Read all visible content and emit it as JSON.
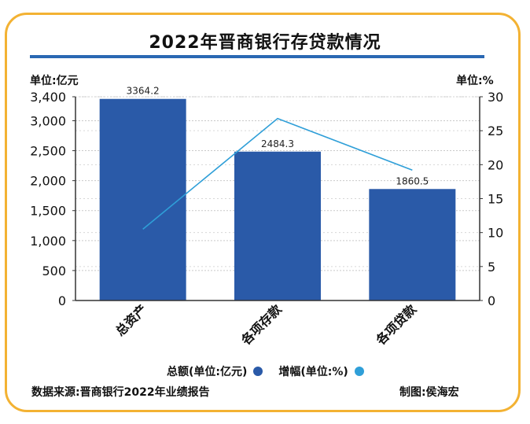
{
  "header": {
    "title": "2022年晋商银行存贷款情况",
    "left_unit": "单位:亿元",
    "right_unit": "单位:%"
  },
  "legend": {
    "total_label": "总额(单位:亿元)",
    "growth_label": "增幅(单位:%)"
  },
  "footer": {
    "source": "数据来源:晋商银行2022年业绩报告",
    "credit": "制图:侯海宏"
  },
  "colors": {
    "bar": "#2a5aa8",
    "line": "#2f9fd8",
    "border": "#f3b233",
    "rule": "#2a68b3"
  },
  "chart_data": {
    "type": "bar",
    "title": "2022年晋商银行存贷款情况",
    "categories": [
      "总资产",
      "各项存款",
      "各项贷款"
    ],
    "series": [
      {
        "name": "总额(单位:亿元)",
        "type": "bar",
        "axis": "left",
        "values": [
          3364.2,
          2484.3,
          1860.5
        ]
      },
      {
        "name": "增幅(单位:%)",
        "type": "line",
        "axis": "right",
        "values": [
          10.5,
          26.8,
          19.2
        ]
      }
    ],
    "data_labels": [
      "3364.2",
      "2484.3",
      "1860.5"
    ],
    "ylim_left": [
      0,
      3400
    ],
    "ylim_right": [
      0,
      30
    ],
    "left_ticks": [
      0,
      500,
      1000,
      1500,
      2000,
      2500,
      3000,
      3400
    ],
    "left_tick_labels": [
      "0",
      "500",
      "1,000",
      "1,500",
      "2,000",
      "2,500",
      "3,000",
      "3,400"
    ],
    "right_ticks": [
      0,
      5,
      10,
      15,
      20,
      25,
      30
    ],
    "right_tick_labels": [
      "0",
      "5",
      "10",
      "15",
      "20",
      "25",
      "30"
    ],
    "grid": true,
    "legend_position": "bottom"
  }
}
